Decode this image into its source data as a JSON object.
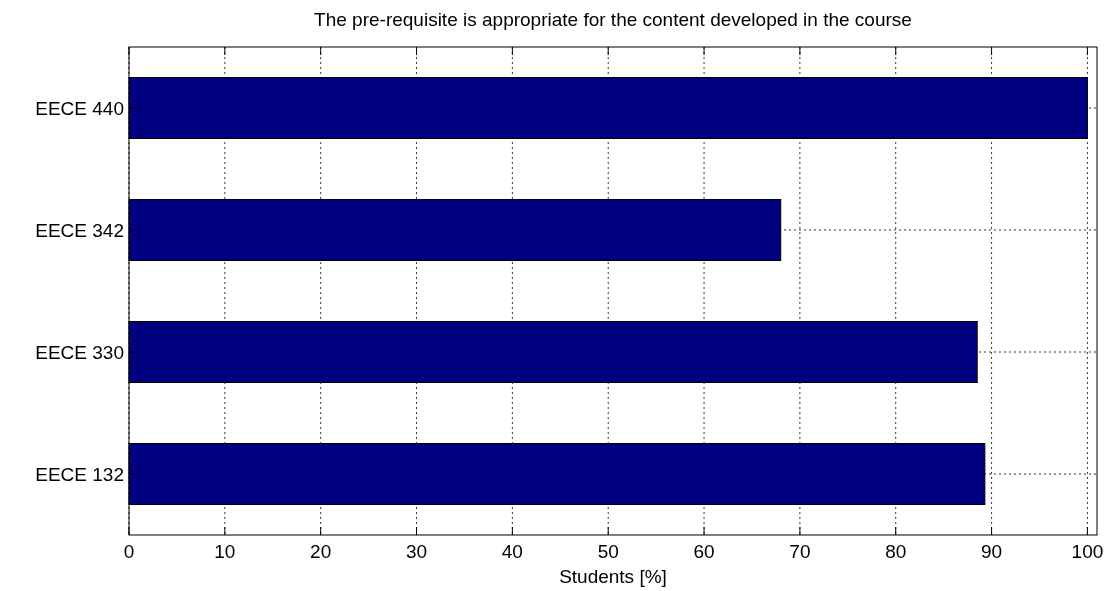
{
  "chart_data": {
    "type": "bar",
    "orientation": "horizontal",
    "title": "The pre-requisite is appropriate for the content developed in the course",
    "xlabel": "Students [%]",
    "categories": [
      "EECE 440",
      "EECE 342",
      "EECE 330",
      "EECE 132"
    ],
    "values": [
      100,
      68,
      88.5,
      89.3
    ],
    "color": "#000080",
    "xlim": [
      0,
      101
    ],
    "xticks": [
      0,
      10,
      20,
      30,
      40,
      50,
      60,
      70,
      80,
      90,
      100
    ],
    "grid": true
  }
}
